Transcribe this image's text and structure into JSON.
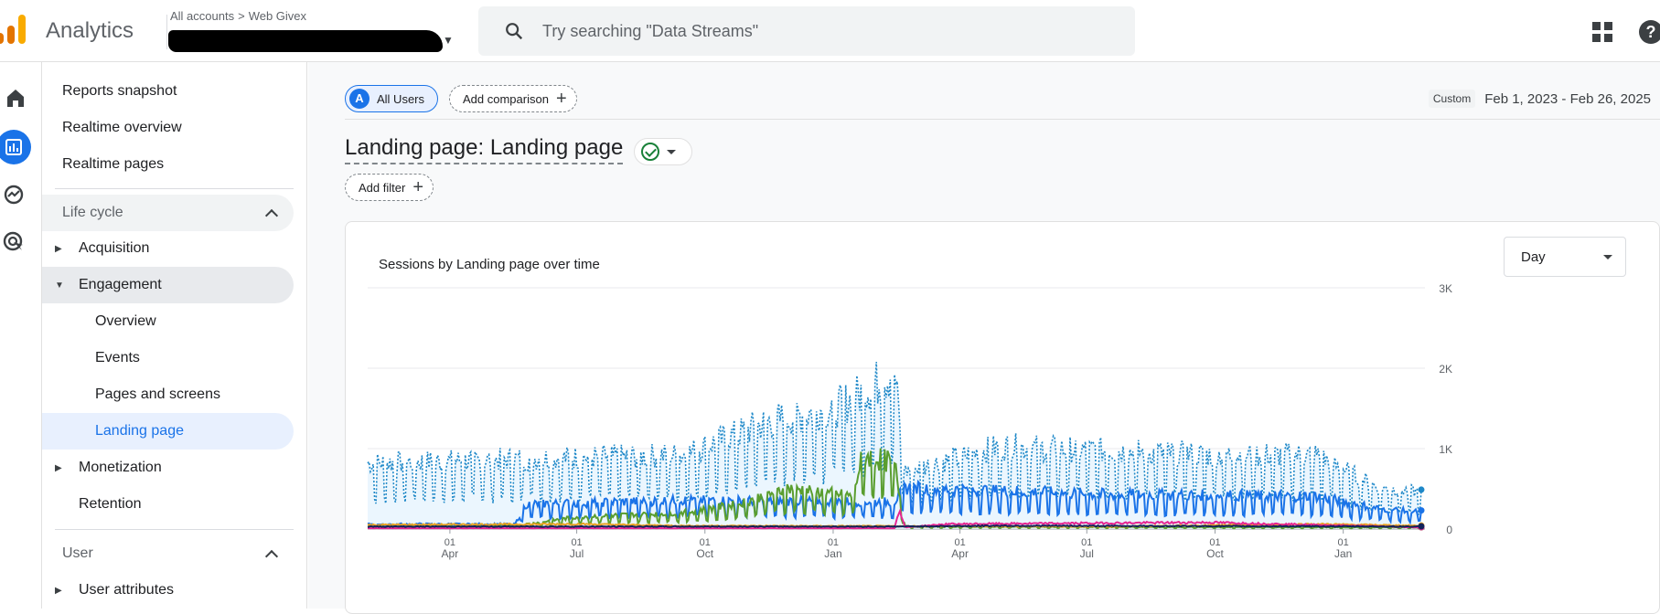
{
  "header": {
    "app_title": "Analytics",
    "breadcrumb_root": "All accounts",
    "breadcrumb_sep": ">",
    "breadcrumb_property": "Web Givex",
    "search_placeholder": "Try searching \"Data Streams\""
  },
  "rail": {
    "icons": [
      "home-icon",
      "reports-icon",
      "explore-icon",
      "advertising-icon"
    ],
    "active": "reports-icon"
  },
  "sidebar": {
    "top_items": [
      "Reports snapshot",
      "Realtime overview",
      "Realtime pages"
    ],
    "lifecycle_section": "Life cycle",
    "lifecycle": [
      {
        "label": "Acquisition",
        "state": "collapsed"
      },
      {
        "label": "Engagement",
        "state": "expanded"
      },
      {
        "label": "Overview"
      },
      {
        "label": "Events"
      },
      {
        "label": "Pages and screens"
      },
      {
        "label": "Landing page",
        "selected": true
      },
      {
        "label": "Monetization",
        "state": "collapsed"
      },
      {
        "label": "Retention"
      }
    ],
    "user_section": "User",
    "user_items": [
      {
        "label": "User attributes",
        "state": "collapsed"
      }
    ]
  },
  "main": {
    "segment_avatar": "A",
    "segment_label": "All Users",
    "add_comparison": "Add comparison",
    "date_badge": "Custom",
    "date_range": "Feb 1, 2023 - Feb 26, 2025",
    "page_title": "Landing page: Landing page",
    "add_filter": "Add filter",
    "toolbar_icons": [
      "notes-icon",
      "compare-icon",
      "insights-icon",
      "share-icon",
      "sparkle-icon",
      "edit-icon"
    ]
  },
  "chart_card": {
    "title": "Sessions by Landing page over time",
    "granularity": "Day"
  },
  "colors": {
    "accent": "#1a73e8",
    "series_blue_dotted": "#1e88c8",
    "series_blue": "#1a73e8",
    "series_green": "#5a9e2f",
    "series_orange": "#e8a020",
    "series_pink": "#e52592",
    "series_dark": "#12235a"
  },
  "chart_data": {
    "type": "line",
    "y_ticks": [
      "3K",
      "2K",
      "1K",
      "0"
    ],
    "ylim": [
      0,
      3000
    ],
    "x_ticks": [
      {
        "day": "01",
        "month": "Apr"
      },
      {
        "day": "01",
        "month": "Jul"
      },
      {
        "day": "01",
        "month": "Oct"
      },
      {
        "day": "01",
        "month": "Jan"
      },
      {
        "day": "01",
        "month": "Apr"
      },
      {
        "day": "01",
        "month": "Jul"
      },
      {
        "day": "01",
        "month": "Oct"
      },
      {
        "day": "01",
        "month": "Jan"
      }
    ],
    "x_start": "2023-02-01",
    "x_end": "2025-02-26",
    "series": [
      {
        "style": "dotted",
        "color": "#1e88c8",
        "fill": true,
        "profile": [
          [
            0,
            800
          ],
          [
            0.15,
            850
          ],
          [
            0.3,
            900
          ],
          [
            0.38,
            1300
          ],
          [
            0.45,
            1500
          ],
          [
            0.5,
            1900
          ],
          [
            0.51,
            700
          ],
          [
            0.6,
            1000
          ],
          [
            0.7,
            950
          ],
          [
            0.8,
            900
          ],
          [
            0.9,
            900
          ],
          [
            0.96,
            500
          ],
          [
            1,
            450
          ]
        ]
      },
      {
        "style": "solid",
        "color": "#1a73e8",
        "profile": [
          [
            0,
            60
          ],
          [
            0.14,
            60
          ],
          [
            0.15,
            300
          ],
          [
            0.3,
            350
          ],
          [
            0.5,
            330
          ],
          [
            0.51,
            500
          ],
          [
            0.7,
            420
          ],
          [
            0.9,
            400
          ],
          [
            0.96,
            250
          ],
          [
            1,
            200
          ]
        ]
      },
      {
        "style": "solid",
        "color": "#5a9e2f",
        "profile": [
          [
            0,
            30
          ],
          [
            0.14,
            40
          ],
          [
            0.2,
            150
          ],
          [
            0.3,
            200
          ],
          [
            0.35,
            300
          ],
          [
            0.4,
            500
          ],
          [
            0.46,
            400
          ],
          [
            0.47,
            900
          ],
          [
            0.5,
            800
          ],
          [
            0.51,
            30
          ],
          [
            1,
            20
          ]
        ]
      },
      {
        "style": "solid",
        "color": "#e8a020",
        "profile": [
          [
            0,
            50
          ],
          [
            0.2,
            60
          ],
          [
            0.3,
            40
          ],
          [
            0.7,
            30
          ],
          [
            0.9,
            60
          ],
          [
            1,
            40
          ]
        ]
      },
      {
        "style": "solid",
        "color": "#e52592",
        "profile": [
          [
            0,
            10
          ],
          [
            0.5,
            10
          ],
          [
            0.505,
            250
          ],
          [
            0.51,
            20
          ],
          [
            0.55,
            60
          ],
          [
            0.8,
            80
          ],
          [
            1,
            20
          ]
        ]
      },
      {
        "style": "solid",
        "color": "#12235a",
        "profile": [
          [
            0,
            30
          ],
          [
            0.5,
            30
          ],
          [
            0.6,
            40
          ],
          [
            1,
            30
          ]
        ]
      }
    ]
  }
}
